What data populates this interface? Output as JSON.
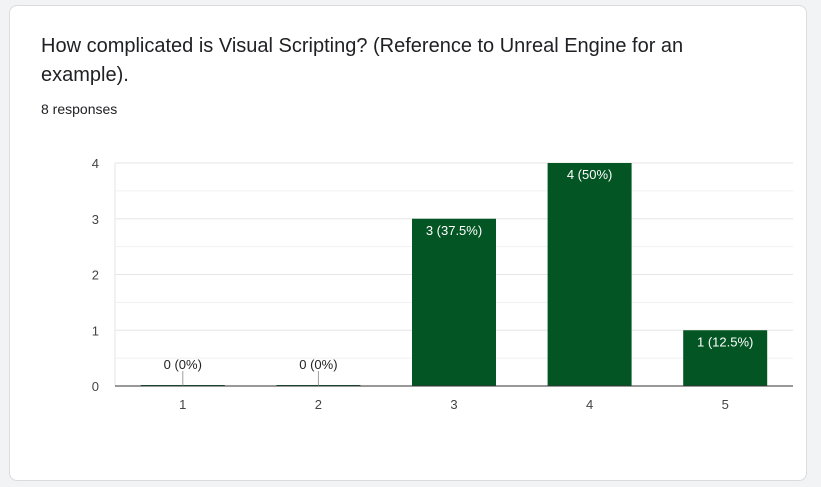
{
  "question": {
    "title": "How complicated is Visual Scripting? (Reference to Unreal Engine for an example).",
    "responses": "8 responses"
  },
  "colors": {
    "bar": "#035624",
    "label_inside": "#ffffff",
    "label_outside": "#222222",
    "gridline": "#e6e6e6",
    "axis": "#333333"
  },
  "chart_data": {
    "type": "bar",
    "categories": [
      "1",
      "2",
      "3",
      "4",
      "5"
    ],
    "values": [
      0,
      0,
      3,
      4,
      1
    ],
    "data_labels": [
      "0 (0%)",
      "0 (0%)",
      "3 (37.5%)",
      "4 (50%)",
      "1 (12.5%)"
    ],
    "y_ticks": [
      0,
      1,
      2,
      3,
      4
    ],
    "ylim": [
      0,
      4
    ],
    "grid": true,
    "legend": "none"
  }
}
